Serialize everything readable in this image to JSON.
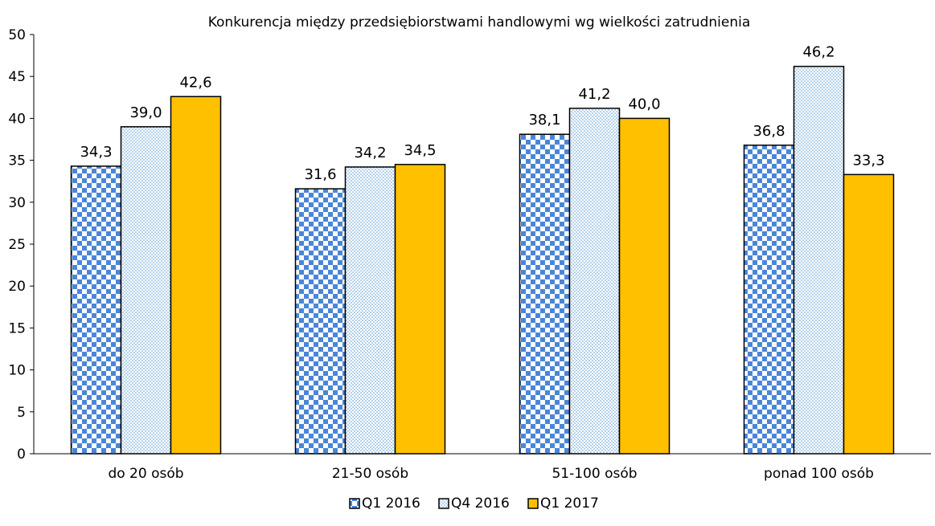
{
  "chart_data": {
    "type": "bar",
    "title": "Konkurencja między przedsiębiorstwami handlowymi wg wielkości zatrudnienia",
    "xlabel": "",
    "ylabel": "",
    "ylim": [
      0,
      50
    ],
    "yticks": [
      0,
      5,
      10,
      15,
      20,
      25,
      30,
      35,
      40,
      45,
      50
    ],
    "grid": false,
    "legend_position": "bottom",
    "categories": [
      "do 20 osób",
      "21-50 osób",
      "51-100 osób",
      "ponad 100 osób"
    ],
    "series": [
      {
        "name": "Q1 2016",
        "values": [
          34.3,
          31.6,
          38.1,
          36.8
        ],
        "labels": [
          "34,3",
          "31,6",
          "38,1",
          "36,8"
        ],
        "color": "#4a86d8",
        "pattern": "checker"
      },
      {
        "name": "Q4 2016",
        "values": [
          39.0,
          34.2,
          41.2,
          46.2
        ],
        "labels": [
          "39,0",
          "34,2",
          "41,2",
          "46,2"
        ],
        "color": "#5b9bd5",
        "pattern": "dots"
      },
      {
        "name": "Q1 2017",
        "values": [
          42.6,
          34.5,
          40.0,
          33.3
        ],
        "labels": [
          "42,6",
          "34,5",
          "40,0",
          "33,3"
        ],
        "color": "#ffc000",
        "pattern": "solid"
      }
    ]
  }
}
